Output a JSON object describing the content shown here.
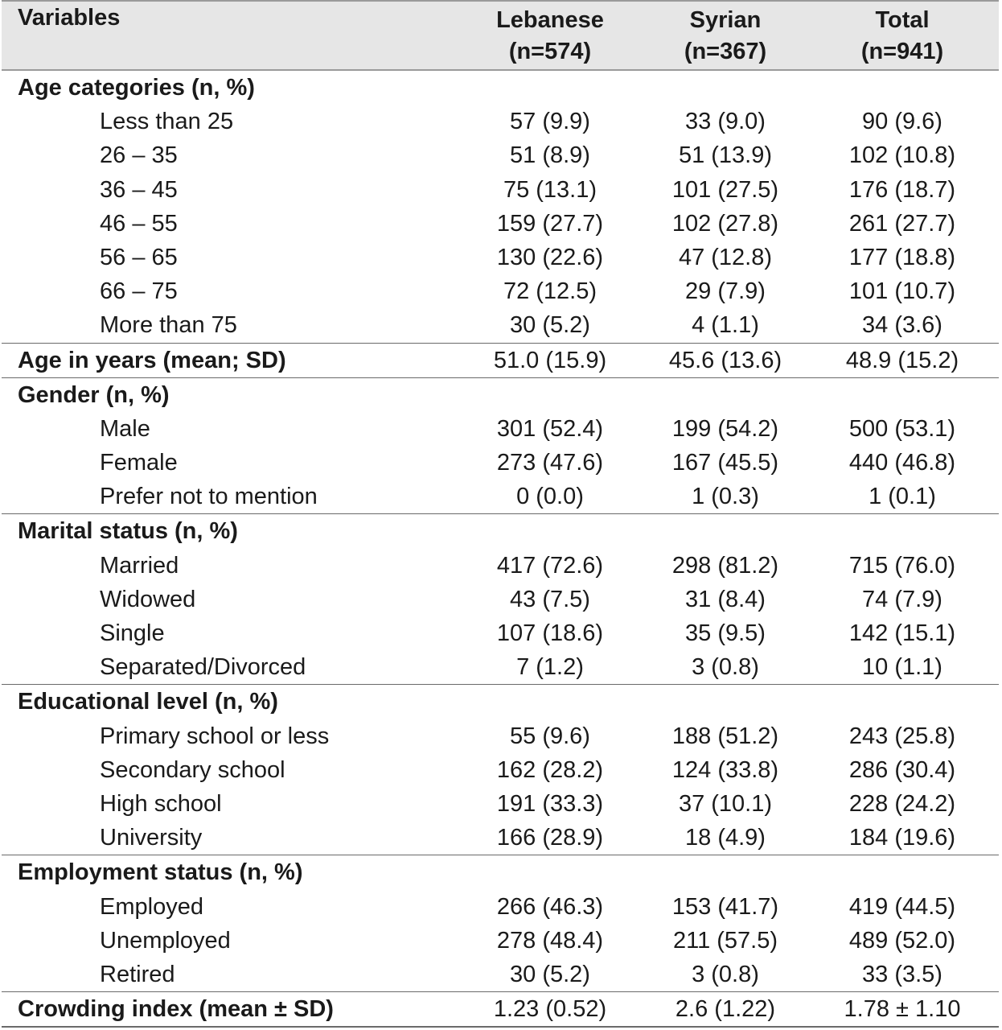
{
  "header": {
    "variables": "Variables",
    "col1_name": "Lebanese",
    "col1_n": "(n=574)",
    "col2_name": "Syrian",
    "col2_n": "(n=367)",
    "col3_name": "Total",
    "col3_n": "(n=941)"
  },
  "rows": [
    {
      "label": "Age categories (n, %)",
      "type": "cat",
      "v": [
        "",
        "",
        ""
      ]
    },
    {
      "label": "Less than 25",
      "type": "sub",
      "v": [
        "57 (9.9)",
        "33 (9.0)",
        "90 (9.6)"
      ]
    },
    {
      "label": "26 – 35",
      "type": "sub",
      "v": [
        "51 (8.9)",
        "51 (13.9)",
        "102 (10.8)"
      ]
    },
    {
      "label": "36 – 45",
      "type": "sub",
      "v": [
        "75 (13.1)",
        "101 (27.5)",
        "176 (18.7)"
      ]
    },
    {
      "label": "46 – 55",
      "type": "sub",
      "v": [
        "159 (27.7)",
        "102 (27.8)",
        "261 (27.7)"
      ]
    },
    {
      "label": "56 – 65",
      "type": "sub",
      "v": [
        "130 (22.6)",
        "47 (12.8)",
        "177 (18.8)"
      ]
    },
    {
      "label": "66 – 75",
      "type": "sub",
      "v": [
        "72 (12.5)",
        "29 (7.9)",
        "101 (10.7)"
      ]
    },
    {
      "label": "More than 75",
      "type": "sub",
      "v": [
        "30 (5.2)",
        "4 (1.1)",
        "34 (3.6)"
      ]
    },
    {
      "label": "Age in years (mean; SD)",
      "type": "cat",
      "sep": true,
      "v": [
        "51.0 (15.9)",
        "45.6 (13.6)",
        "48.9 (15.2)"
      ]
    },
    {
      "label": "Gender (n, %)",
      "type": "cat",
      "sep": true,
      "v": [
        "",
        "",
        ""
      ]
    },
    {
      "label": "Male",
      "type": "sub",
      "v": [
        "301 (52.4)",
        "199 (54.2)",
        "500 (53.1)"
      ]
    },
    {
      "label": "Female",
      "type": "sub",
      "v": [
        "273 (47.6)",
        "167 (45.5)",
        "440 (46.8)"
      ]
    },
    {
      "label": "Prefer not to mention",
      "type": "sub",
      "v": [
        "0 (0.0)",
        "1 (0.3)",
        "1 (0.1)"
      ]
    },
    {
      "label": "Marital status (n, %)",
      "type": "cat",
      "sep": true,
      "v": [
        "",
        "",
        ""
      ]
    },
    {
      "label": "Married",
      "type": "sub",
      "v": [
        "417 (72.6)",
        "298 (81.2)",
        "715 (76.0)"
      ]
    },
    {
      "label": "Widowed",
      "type": "sub",
      "v": [
        "43 (7.5)",
        "31 (8.4)",
        "74 (7.9)"
      ]
    },
    {
      "label": "Single",
      "type": "sub",
      "v": [
        "107 (18.6)",
        "35 (9.5)",
        "142 (15.1)"
      ]
    },
    {
      "label": "Separated/Divorced",
      "type": "sub",
      "v": [
        "7 (1.2)",
        "3 (0.8)",
        "10 (1.1)"
      ]
    },
    {
      "label": "Educational level (n, %)",
      "type": "cat",
      "sep": true,
      "v": [
        "",
        "",
        ""
      ]
    },
    {
      "label": "Primary school or less",
      "type": "sub",
      "v": [
        "55 (9.6)",
        "188 (51.2)",
        "243 (25.8)"
      ]
    },
    {
      "label": "Secondary school",
      "type": "sub",
      "v": [
        "162 (28.2)",
        "124 (33.8)",
        "286 (30.4)"
      ]
    },
    {
      "label": "High school",
      "type": "sub",
      "v": [
        "191 (33.3)",
        "37 (10.1)",
        "228 (24.2)"
      ]
    },
    {
      "label": "University",
      "type": "sub",
      "v": [
        "166 (28.9)",
        "18 (4.9)",
        "184 (19.6)"
      ]
    },
    {
      "label": "Employment status (n, %)",
      "type": "cat",
      "sep": true,
      "v": [
        "",
        "",
        ""
      ]
    },
    {
      "label": "Employed",
      "type": "sub",
      "v": [
        "266 (46.3)",
        "153 (41.7)",
        "419 (44.5)"
      ]
    },
    {
      "label": "Unemployed",
      "type": "sub",
      "v": [
        "278 (48.4)",
        "211 (57.5)",
        "489 (52.0)"
      ]
    },
    {
      "label": "Retired",
      "type": "sub",
      "v": [
        "30 (5.2)",
        "3 (0.8)",
        "33 (3.5)"
      ]
    },
    {
      "label": "Crowding index (mean ± SD)",
      "type": "cat",
      "sep": true,
      "last": true,
      "v": [
        "1.23 (0.52)",
        "2.6 (1.22)",
        "1.78 ± 1.10"
      ]
    }
  ]
}
